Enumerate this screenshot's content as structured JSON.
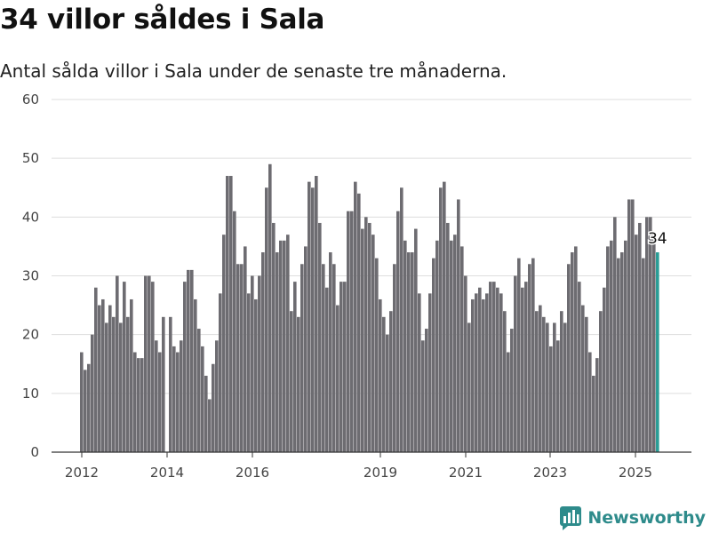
{
  "title": "34 villor såldes i Sala",
  "subtitle": "Antal sålda villor i Sala under de senaste tre månaderna.",
  "brand": {
    "name": "Newsworthy",
    "logo_icon": "newsworthy-bar-chart-logo-icon"
  },
  "colors": {
    "bar": "#6d6c71",
    "highlight": "#2a9d96",
    "grid": "#dddddd",
    "axis": "#333333",
    "brand": "#2e8b8b"
  },
  "chart_data": {
    "type": "bar",
    "ylim": [
      0,
      60
    ],
    "yticks": [
      0,
      10,
      20,
      30,
      40,
      50,
      60
    ],
    "xticks": [
      "2012",
      "2014",
      "2016",
      "2019",
      "2021",
      "2023",
      "2025"
    ],
    "series": [
      {
        "values": [
          17,
          14,
          15,
          20,
          28,
          25,
          26,
          22,
          25,
          23,
          30,
          22,
          29,
          23,
          26,
          17,
          16,
          16,
          30,
          30,
          29,
          19,
          17,
          23,
          0,
          23,
          18,
          17,
          19,
          29,
          31,
          31,
          26,
          21,
          18,
          13,
          9,
          15,
          19,
          27,
          37,
          47,
          47,
          41,
          32,
          32,
          35,
          27,
          30,
          26,
          30,
          34,
          45,
          49,
          39,
          34,
          36,
          36,
          37,
          24,
          29,
          23,
          32,
          35,
          46,
          45,
          47,
          39,
          32,
          28,
          34,
          32,
          25,
          29,
          29,
          41,
          41,
          46,
          44,
          38,
          40,
          39,
          37,
          33,
          26,
          23,
          20,
          24,
          32,
          41,
          45,
          36,
          34,
          34,
          38,
          27,
          19,
          21,
          27,
          33,
          36,
          45,
          46,
          39,
          36,
          37,
          43,
          35,
          30,
          22,
          26,
          27,
          28,
          26,
          27,
          29,
          29,
          28,
          27,
          24,
          17,
          21,
          30,
          33,
          28,
          29,
          32,
          33,
          24,
          25,
          23,
          22,
          18,
          22,
          19,
          24,
          22,
          32,
          34,
          35,
          29,
          25,
          23,
          17,
          13,
          16,
          24,
          28,
          35,
          36,
          40,
          33,
          34,
          36,
          43,
          43,
          37,
          39,
          33,
          40,
          40,
          37,
          34
        ]
      }
    ],
    "highlight_label": "34"
  }
}
